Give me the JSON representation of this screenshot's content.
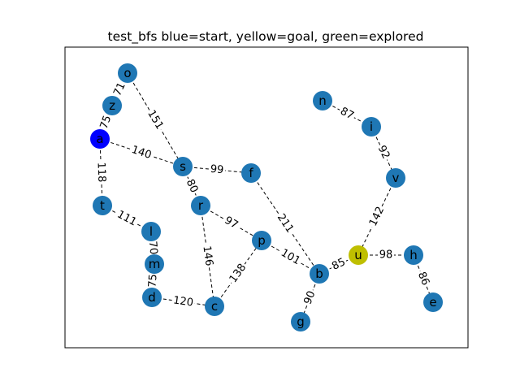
{
  "title": "test_bfs blue=start, yellow=goal, green=explored",
  "colors": {
    "default": "#1f77b4",
    "start": "#0000ff",
    "goal": "#bfbf00"
  },
  "nodes": [
    {
      "id": "o",
      "label": "o",
      "role": "default"
    },
    {
      "id": "z",
      "label": "z",
      "role": "default"
    },
    {
      "id": "a",
      "label": "a",
      "role": "start"
    },
    {
      "id": "s",
      "label": "s",
      "role": "default"
    },
    {
      "id": "f",
      "label": "f",
      "role": "default"
    },
    {
      "id": "t",
      "label": "t",
      "role": "default"
    },
    {
      "id": "r",
      "label": "r",
      "role": "default"
    },
    {
      "id": "l",
      "label": "l",
      "role": "default"
    },
    {
      "id": "m",
      "label": "m",
      "role": "default"
    },
    {
      "id": "d",
      "label": "d",
      "role": "default"
    },
    {
      "id": "c",
      "label": "c",
      "role": "default"
    },
    {
      "id": "p",
      "label": "p",
      "role": "default"
    },
    {
      "id": "n",
      "label": "n",
      "role": "default"
    },
    {
      "id": "i",
      "label": "i",
      "role": "default"
    },
    {
      "id": "v",
      "label": "v",
      "role": "default"
    },
    {
      "id": "b",
      "label": "b",
      "role": "default"
    },
    {
      "id": "g",
      "label": "g",
      "role": "default"
    },
    {
      "id": "u",
      "label": "u",
      "role": "goal"
    },
    {
      "id": "h",
      "label": "h",
      "role": "default"
    },
    {
      "id": "e",
      "label": "e",
      "role": "default"
    }
  ],
  "edges": [
    {
      "from": "o",
      "to": "z",
      "weight": "71"
    },
    {
      "from": "o",
      "to": "s",
      "weight": "151"
    },
    {
      "from": "z",
      "to": "a",
      "weight": "75"
    },
    {
      "from": "a",
      "to": "s",
      "weight": "140"
    },
    {
      "from": "a",
      "to": "t",
      "weight": "118"
    },
    {
      "from": "s",
      "to": "f",
      "weight": "99"
    },
    {
      "from": "s",
      "to": "r",
      "weight": "80"
    },
    {
      "from": "f",
      "to": "b",
      "weight": "211"
    },
    {
      "from": "t",
      "to": "l",
      "weight": "111"
    },
    {
      "from": "l",
      "to": "m",
      "weight": "70"
    },
    {
      "from": "m",
      "to": "d",
      "weight": "75"
    },
    {
      "from": "d",
      "to": "c",
      "weight": "120"
    },
    {
      "from": "r",
      "to": "c",
      "weight": "146"
    },
    {
      "from": "r",
      "to": "p",
      "weight": "97"
    },
    {
      "from": "c",
      "to": "p",
      "weight": "138"
    },
    {
      "from": "p",
      "to": "b",
      "weight": "101"
    },
    {
      "from": "b",
      "to": "g",
      "weight": "90"
    },
    {
      "from": "b",
      "to": "u",
      "weight": "85"
    },
    {
      "from": "n",
      "to": "i",
      "weight": "87"
    },
    {
      "from": "i",
      "to": "v",
      "weight": "92"
    },
    {
      "from": "v",
      "to": "u",
      "weight": "142"
    },
    {
      "from": "u",
      "to": "h",
      "weight": "98"
    },
    {
      "from": "h",
      "to": "e",
      "weight": "86"
    }
  ]
}
